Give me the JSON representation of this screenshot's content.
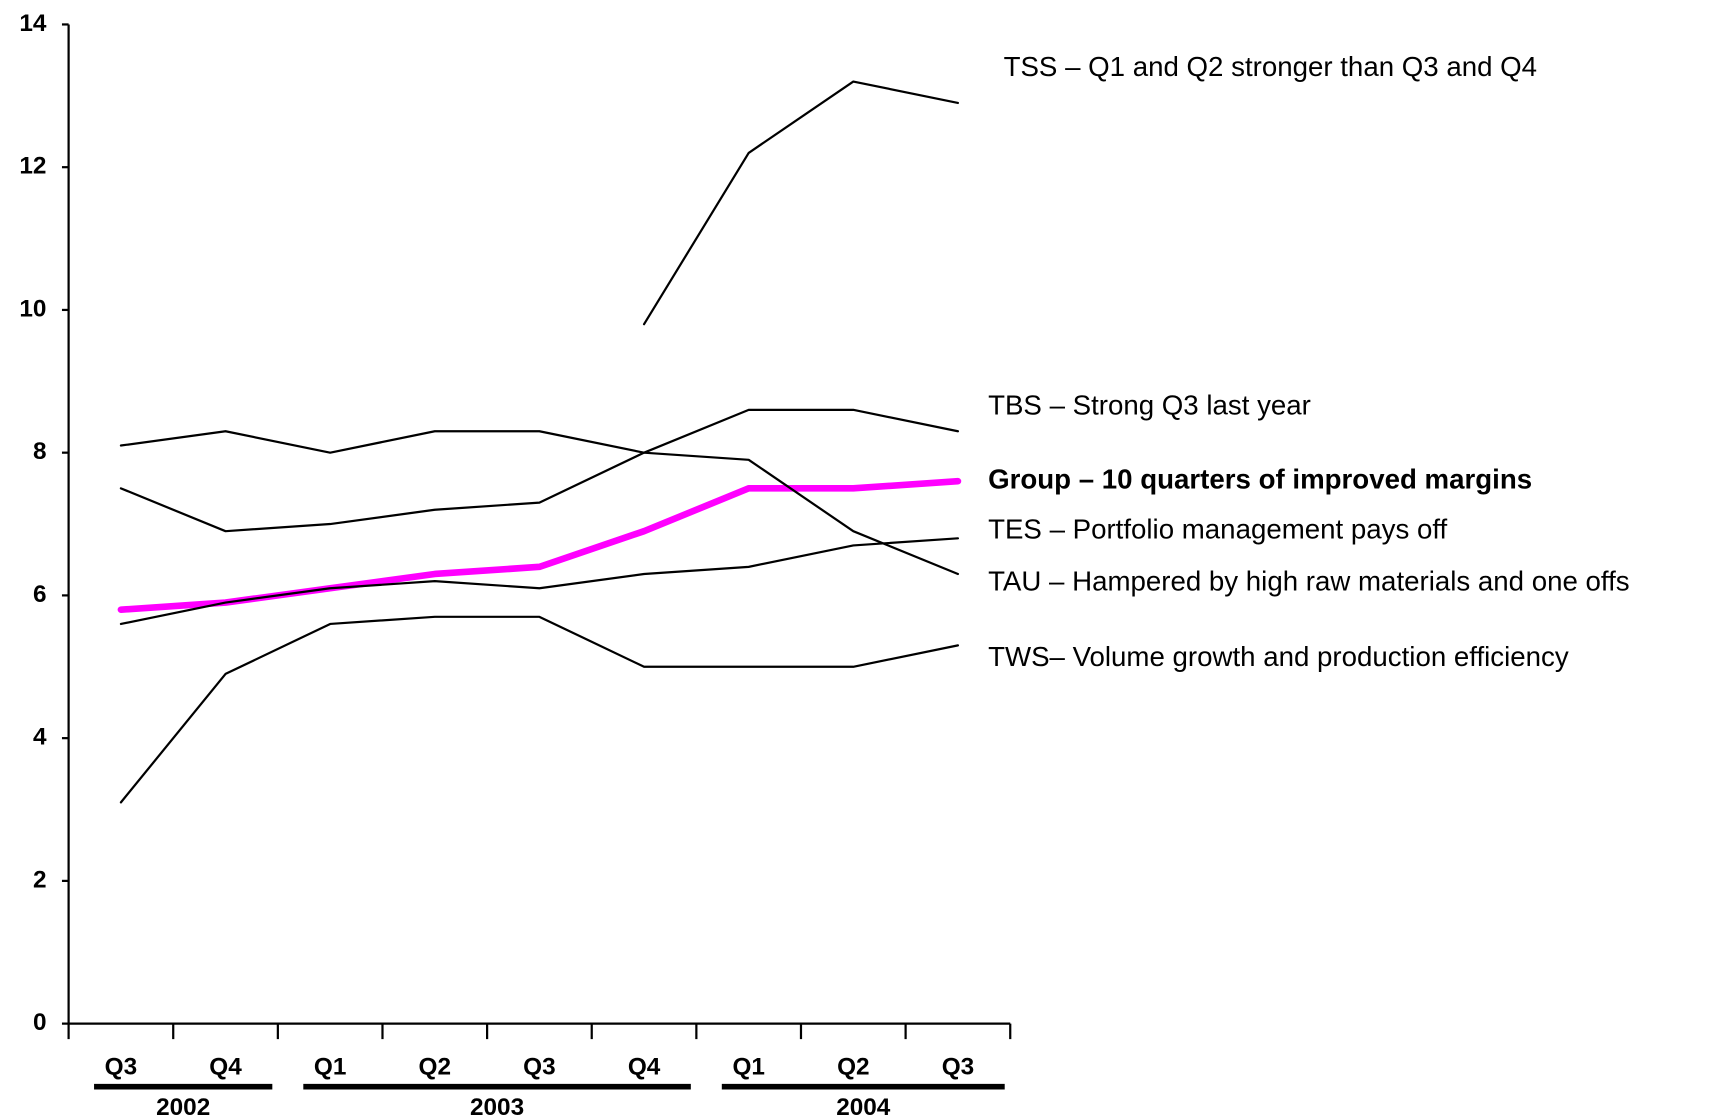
{
  "chart_data": {
    "type": "line",
    "categories": [
      "Q3",
      "Q4",
      "Q1",
      "Q2",
      "Q3",
      "Q4",
      "Q1",
      "Q2",
      "Q3"
    ],
    "years": [
      "2002",
      "2003",
      "2004"
    ],
    "ylim": [
      0,
      14
    ],
    "yticks": [
      0,
      2,
      4,
      6,
      8,
      10,
      12,
      14
    ],
    "series": [
      {
        "name": "TSS – Q1 and Q2 stronger than Q3 and Q4",
        "color": "#000000",
        "values": [
          null,
          null,
          null,
          null,
          null,
          9.8,
          12.2,
          13.2,
          12.9
        ]
      },
      {
        "name": "TBS – Strong Q3 last year",
        "color": "#000000",
        "values": [
          7.5,
          6.9,
          7.0,
          7.2,
          7.3,
          8.0,
          8.6,
          8.6,
          8.3
        ]
      },
      {
        "name": "Group – 10 quarters of improved margins",
        "color": "#ff00ff",
        "emphasis": true,
        "values": [
          5.8,
          5.9,
          6.1,
          6.3,
          6.4,
          6.9,
          7.5,
          7.5,
          7.6
        ]
      },
      {
        "name": "TES – Portfolio management pays off",
        "color": "#000000",
        "values": [
          5.6,
          5.9,
          6.1,
          6.2,
          6.1,
          6.3,
          6.4,
          6.7,
          6.8
        ]
      },
      {
        "name": "TAU – Hampered by high raw materials and one offs",
        "color": "#000000",
        "values": [
          8.1,
          8.3,
          8.0,
          8.3,
          8.3,
          8.0,
          7.9,
          6.9,
          6.3
        ]
      },
      {
        "name": "TWS– Volume growth and production efficiency",
        "color": "#000000",
        "values": [
          3.1,
          4.9,
          5.6,
          5.7,
          5.7,
          5.0,
          5.0,
          5.0,
          5.3
        ]
      }
    ]
  }
}
